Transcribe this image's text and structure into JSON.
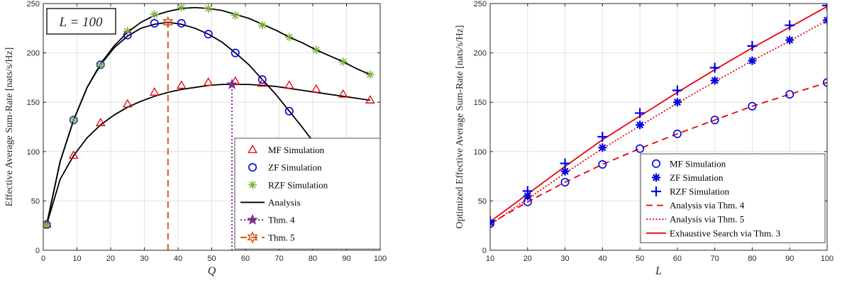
{
  "chart_data": [
    {
      "type": "line",
      "xlabel": "Q",
      "ylabel": "Effective Average Sum-Rate [nats/s/Hz]",
      "xlim": [
        0,
        100
      ],
      "ylim": [
        0,
        250
      ],
      "xticks": [
        0,
        10,
        20,
        30,
        40,
        50,
        60,
        70,
        80,
        90,
        100
      ],
      "yticks": [
        0,
        50,
        100,
        150,
        200,
        250
      ],
      "grid": true,
      "annotation": "L = 100",
      "legend_position": "bottom-right",
      "series": [
        {
          "name": "MF Simulation",
          "kind": "marker",
          "marker": "triangle",
          "color": "#e8000b",
          "x": [
            1,
            9,
            17,
            25,
            33,
            41,
            49,
            57,
            65,
            73,
            81,
            89,
            97
          ],
          "y": [
            26,
            96,
            129,
            148,
            160,
            167,
            170,
            171,
            169,
            167,
            163,
            158,
            152
          ]
        },
        {
          "name": "ZF Simulation",
          "kind": "marker",
          "marker": "circle",
          "color": "#0000e6",
          "x": [
            1,
            9,
            17,
            25,
            33,
            41,
            49,
            57,
            65,
            73,
            81,
            89,
            97
          ],
          "y": [
            26,
            132,
            188,
            218,
            230,
            230,
            219,
            200,
            173,
            141,
            106,
            62,
            18
          ]
        },
        {
          "name": "RZF Simulation",
          "kind": "marker",
          "marker": "star",
          "color": "#77ac30",
          "x": [
            1,
            9,
            17,
            25,
            33,
            41,
            49,
            57,
            65,
            73,
            81,
            89,
            97
          ],
          "y": [
            26,
            132,
            188,
            222,
            239,
            246,
            245,
            238,
            228,
            216,
            203,
            191,
            178
          ]
        },
        {
          "name": "Analysis",
          "kind": "line",
          "color": "#000000",
          "dash": "",
          "x": [
            1,
            5,
            9,
            13,
            17,
            21,
            25,
            29,
            33,
            37,
            41,
            45,
            49,
            53,
            57,
            61,
            65,
            69,
            73,
            77,
            81,
            85,
            89,
            93,
            97
          ],
          "y": [
            26,
            72,
            96,
            114,
            127,
            137,
            145,
            151,
            156,
            160,
            163,
            165,
            167,
            168,
            168,
            168,
            167,
            166,
            164,
            162,
            160,
            158,
            156,
            154,
            152
          ]
        },
        {
          "name": "",
          "kind": "line",
          "color": "#000000",
          "dash": "",
          "x": [
            1,
            5,
            9,
            13,
            17,
            21,
            25,
            29,
            33,
            37,
            41,
            45,
            49,
            53,
            57,
            61,
            65,
            69,
            73,
            77,
            81,
            85,
            89,
            93,
            97
          ],
          "y": [
            26,
            90,
            132,
            165,
            188,
            205,
            217,
            225,
            229,
            231,
            229,
            225,
            219,
            211,
            200,
            188,
            173,
            158,
            141,
            124,
            106,
            85,
            62,
            40,
            18
          ]
        },
        {
          "name": "",
          "kind": "line",
          "color": "#000000",
          "dash": "",
          "x": [
            1,
            5,
            9,
            13,
            17,
            21,
            25,
            29,
            33,
            37,
            41,
            45,
            49,
            53,
            57,
            61,
            65,
            69,
            73,
            77,
            81,
            85,
            89,
            93,
            97
          ],
          "y": [
            26,
            90,
            132,
            165,
            189,
            207,
            221,
            231,
            238,
            242,
            245,
            246,
            245,
            243,
            239,
            235,
            229,
            223,
            216,
            210,
            203,
            197,
            191,
            184,
            178
          ]
        },
        {
          "name": "Thm. 4",
          "kind": "vline",
          "marker": "star",
          "color": "#7e2f8e",
          "dash": "2,3",
          "x": [
            56,
            56
          ],
          "y": [
            0,
            168
          ]
        },
        {
          "name": "Thm. 5",
          "kind": "vline",
          "marker": "hexstar",
          "color": "#d95319",
          "dash": "9,6",
          "x": [
            37,
            37
          ],
          "y": [
            0,
            231
          ]
        }
      ]
    },
    {
      "type": "line",
      "xlabel": "L",
      "ylabel": "Optimized Effective Average Sum-Rate [nats/s/Hz]",
      "xlim": [
        10,
        100
      ],
      "ylim": [
        0,
        250
      ],
      "xticks": [
        10,
        20,
        30,
        40,
        50,
        60,
        70,
        80,
        90,
        100
      ],
      "yticks": [
        0,
        50,
        100,
        150,
        200,
        250
      ],
      "grid": true,
      "legend_position": "bottom-right",
      "series": [
        {
          "name": "MF Simulation",
          "kind": "marker",
          "marker": "circle",
          "color": "#0000e6",
          "x": [
            10,
            20,
            30,
            40,
            50,
            60,
            70,
            80,
            90,
            100
          ],
          "y": [
            27,
            49,
            69,
            87,
            103,
            118,
            132,
            146,
            158,
            170
          ]
        },
        {
          "name": "ZF Simulation",
          "kind": "marker",
          "marker": "asterisk",
          "color": "#0000e6",
          "x": [
            10,
            20,
            30,
            40,
            50,
            60,
            70,
            80,
            90,
            100
          ],
          "y": [
            28,
            55,
            80,
            104,
            127,
            150,
            172,
            192,
            213,
            233
          ]
        },
        {
          "name": "RZF Simulation",
          "kind": "marker",
          "marker": "plus",
          "color": "#0000e6",
          "x": [
            10,
            20,
            30,
            40,
            50,
            60,
            70,
            80,
            90,
            100
          ],
          "y": [
            30,
            60,
            88,
            115,
            139,
            162,
            185,
            207,
            228,
            248
          ]
        },
        {
          "name": "Analysis via Thm. 4",
          "kind": "line",
          "color": "#e8000b",
          "dash": "9,6",
          "x": [
            10,
            20,
            30,
            40,
            50,
            60,
            70,
            80,
            90,
            100
          ],
          "y": [
            27,
            49,
            69,
            87,
            103,
            118,
            132,
            146,
            158,
            170
          ]
        },
        {
          "name": "Analysis via Thm. 5",
          "kind": "line",
          "color": "#e8000b",
          "dash": "2,2.5",
          "x": [
            10,
            20,
            30,
            40,
            50,
            60,
            70,
            80,
            90,
            100
          ],
          "y": [
            26,
            52,
            78,
            103,
            126,
            149,
            171,
            192,
            212,
            233
          ]
        },
        {
          "name": "Exhaustive Search via Thm. 3",
          "kind": "line",
          "color": "#e8000b",
          "dash": "",
          "x": [
            10,
            20,
            30,
            40,
            50,
            60,
            70,
            80,
            90,
            100
          ],
          "y": [
            29,
            57,
            85,
            112,
            136,
            160,
            183,
            205,
            226,
            247
          ]
        }
      ]
    }
  ]
}
